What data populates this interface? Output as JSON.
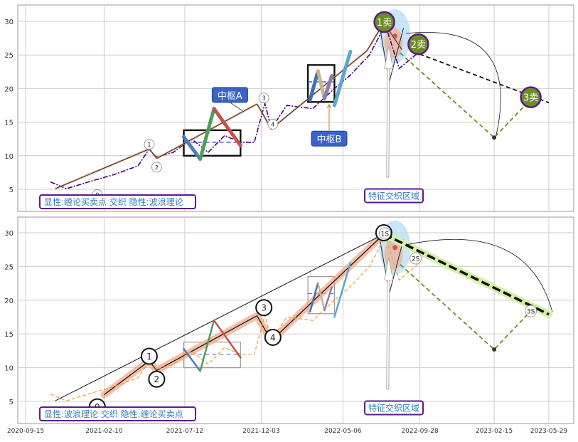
{
  "chart_data": [
    {
      "type": "line",
      "x_ticks": [
        "2020-09-15",
        "2021-02-10",
        "2021-07-12",
        "2021-12-03",
        "2022-05-06",
        "2022-09-28",
        "2023-02-15",
        "2023-05-29"
      ],
      "y_ticks": [
        5,
        10,
        15,
        20,
        25,
        30
      ],
      "ylim": [
        2.5,
        32.5
      ],
      "grid": true,
      "price_color": "#4b0082",
      "price_style": "dashdot",
      "price_anchors": [
        [
          "2020-11-01",
          6.1
        ],
        [
          "2020-12-01",
          5.1
        ],
        [
          "2021-01-20",
          6.3
        ],
        [
          "2021-03-01",
          7.2
        ],
        [
          "2021-04-15",
          8.5
        ],
        [
          "2021-05-06",
          11.0
        ],
        [
          "2021-05-20",
          9.8
        ],
        [
          "2021-06-20",
          10.5
        ],
        [
          "2021-07-25",
          12.5
        ],
        [
          "2021-08-25",
          10.5
        ],
        [
          "2021-09-25",
          13.0
        ],
        [
          "2021-10-25",
          12.0
        ],
        [
          "2021-11-20",
          12.0
        ],
        [
          "2021-12-10",
          17.8
        ],
        [
          "2021-12-22",
          14.0
        ],
        [
          "2022-01-20",
          17.5
        ],
        [
          "2022-03-10",
          17.0
        ],
        [
          "2022-04-20",
          20.0
        ],
        [
          "2022-05-20",
          22.0
        ],
        [
          "2022-06-25",
          25.0
        ],
        [
          "2022-07-25",
          29.5
        ],
        [
          "2022-08-20",
          23.0
        ],
        [
          "2022-09-20",
          25.0
        ],
        [
          "2022-10-01",
          26.0
        ]
      ],
      "bi_lines": [
        [
          [
            "2020-11-10",
            5.1
          ],
          [
            "2021-05-06",
            11.0
          ]
        ],
        [
          [
            "2021-05-06",
            11.0
          ],
          [
            "2021-05-20",
            9.6
          ]
        ],
        [
          [
            "2021-05-20",
            9.6
          ],
          [
            "2021-11-25",
            17.7
          ]
        ],
        [
          [
            "2021-11-25",
            17.7
          ],
          [
            "2021-12-22",
            14.0
          ]
        ],
        [
          [
            "2021-12-22",
            14.0
          ],
          [
            "2022-06-20",
            25.6
          ]
        ],
        [
          [
            "2022-06-20",
            25.6
          ],
          [
            "2022-07-22",
            29.8
          ]
        ],
        [
          [
            "2022-07-22",
            29.8
          ],
          [
            "2022-08-25",
            25.8
          ]
        ]
      ],
      "segment_strokes": [
        {
          "points": [
            [
              "2021-07-10",
              12.8
            ],
            [
              "2021-08-10",
              9.5
            ]
          ],
          "color": "#4a7cc1"
        },
        {
          "points": [
            [
              "2021-08-10",
              9.5
            ],
            [
              "2021-09-05",
              17.0
            ]
          ],
          "color": "#4d9f5c"
        },
        {
          "points": [
            [
              "2021-09-05",
              17.0
            ],
            [
              "2021-10-25",
              11.5
            ]
          ],
          "color": "#c94f4f"
        },
        {
          "points": [
            [
              "2022-03-05",
              18.3
            ],
            [
              "2022-03-20",
              22.6
            ]
          ],
          "color": "#3f6fb5"
        },
        {
          "points": [
            [
              "2022-03-20",
              22.6
            ],
            [
              "2022-04-01",
              18.5
            ]
          ],
          "color": "#c9b48f"
        },
        {
          "points": [
            [
              "2022-04-01",
              18.5
            ],
            [
              "2022-04-15",
              21.9
            ]
          ],
          "color": "#8a7ab4"
        },
        {
          "points": [
            [
              "2022-04-20",
              17.5
            ],
            [
              "2022-05-20",
              25.5
            ]
          ],
          "color": "#5aa9cf"
        }
      ],
      "zhongshu_boxes": [
        {
          "x": [
            "2021-07-10",
            "2021-10-25"
          ],
          "y": [
            10.0,
            13.8
          ],
          "mid": 12.0
        },
        {
          "x": [
            "2022-03-01",
            "2022-04-20"
          ],
          "y": [
            18.0,
            23.5
          ],
          "mid": 21.0
        }
      ],
      "numbered_points": [
        {
          "label": "0",
          "x": "2021-01-28",
          "y": 4.2
        },
        {
          "label": "1",
          "x": "2021-05-06",
          "y": 11.7
        },
        {
          "label": "2",
          "x": "2021-05-20",
          "y": 8.3
        },
        {
          "label": "3",
          "x": "2021-12-08",
          "y": 18.6
        },
        {
          "label": "4",
          "x": "2021-12-25",
          "y": 14.7
        }
      ],
      "labels": [
        {
          "key": "zhongshu_a",
          "text": "中枢A",
          "x": "2021-10-05",
          "y": 19.0
        },
        {
          "key": "zhongshu_b",
          "text": "中枢B",
          "x": "2022-04-10",
          "y": 12.5
        },
        {
          "key": "feature_zone",
          "text": "特征交织区域",
          "x": "2022-08-10",
          "y": 4.0
        },
        {
          "key": "legend",
          "text": "显性:缠论买卖点 交织 隐性:波浪理论"
        }
      ],
      "sell_points": [
        {
          "label": "1卖",
          "x": "2022-07-23",
          "y": 29.9
        },
        {
          "label": "2卖",
          "x": "2022-09-25",
          "y": 26.6
        },
        {
          "label": "3卖",
          "x": "2023-04-25",
          "y": 18.7
        }
      ],
      "projection": {
        "from": [
          "2022-09-15",
          25.5
        ],
        "to": [
          "2023-05-29",
          17.9
        ],
        "valley": [
          "2023-02-15",
          12.7
        ]
      }
    },
    {
      "type": "line",
      "x_ticks": [
        "2020-09-15",
        "2021-02-10",
        "2021-07-12",
        "2021-12-03",
        "2022-05-06",
        "2022-09-28",
        "2023-02-15",
        "2023-05-29"
      ],
      "y_ticks": [
        5,
        10,
        15,
        20,
        25,
        30
      ],
      "ylim": [
        2.5,
        32.5
      ],
      "grid": true,
      "price_color": "#e8a838",
      "price_style": "dashed",
      "price_anchors": [
        [
          "2020-11-01",
          6.1
        ],
        [
          "2020-12-01",
          5.1
        ],
        [
          "2021-01-20",
          6.3
        ],
        [
          "2021-03-01",
          7.2
        ],
        [
          "2021-04-15",
          8.5
        ],
        [
          "2021-05-06",
          11.0
        ],
        [
          "2021-05-20",
          9.8
        ],
        [
          "2021-06-20",
          10.5
        ],
        [
          "2021-07-25",
          12.5
        ],
        [
          "2021-08-25",
          10.5
        ],
        [
          "2021-09-25",
          13.0
        ],
        [
          "2021-10-25",
          12.0
        ],
        [
          "2021-11-20",
          12.0
        ],
        [
          "2021-12-10",
          17.8
        ],
        [
          "2021-12-22",
          14.0
        ],
        [
          "2022-01-20",
          17.5
        ],
        [
          "2022-03-10",
          17.0
        ],
        [
          "2022-04-20",
          20.0
        ],
        [
          "2022-05-20",
          22.0
        ],
        [
          "2022-06-25",
          25.0
        ],
        [
          "2022-07-25",
          29.5
        ],
        [
          "2022-08-20",
          23.0
        ],
        [
          "2022-09-20",
          25.0
        ],
        [
          "2022-10-01",
          26.0
        ]
      ],
      "wave_lines": [
        [
          [
            "2021-02-10",
            6.0
          ],
          [
            "2021-05-06",
            11.0
          ],
          [
            "2021-05-20",
            9.6
          ],
          [
            "2021-11-25",
            17.7
          ],
          [
            "2021-12-22",
            14.0
          ],
          [
            "2022-07-22",
            29.8
          ]
        ]
      ],
      "trend_line": [
        [
          "2020-11-10",
          5.1
        ],
        [
          "2022-07-22",
          29.8
        ]
      ],
      "segment_strokes": [
        {
          "points": [
            [
              "2021-07-10",
              12.8
            ],
            [
              "2021-08-10",
              9.5
            ]
          ],
          "color": "#4a7cc1"
        },
        {
          "points": [
            [
              "2021-08-10",
              9.5
            ],
            [
              "2021-09-05",
              17.0
            ]
          ],
          "color": "#4d9f5c"
        },
        {
          "points": [
            [
              "2021-09-05",
              17.0
            ],
            [
              "2021-10-25",
              11.5
            ]
          ],
          "color": "#c94f4f"
        },
        {
          "points": [
            [
              "2022-03-05",
              18.3
            ],
            [
              "2022-03-20",
              22.6
            ]
          ],
          "color": "#3f6fb5"
        },
        {
          "points": [
            [
              "2022-03-20",
              22.6
            ],
            [
              "2022-04-01",
              18.5
            ]
          ],
          "color": "#c9b48f"
        },
        {
          "points": [
            [
              "2022-04-01",
              18.5
            ],
            [
              "2022-04-15",
              21.9
            ]
          ],
          "color": "#8a7ab4"
        },
        {
          "points": [
            [
              "2022-04-20",
              17.5
            ],
            [
              "2022-05-20",
              25.5
            ]
          ],
          "color": "#5aa9cf"
        }
      ],
      "zhongshu_boxes": [
        {
          "x": [
            "2021-07-10",
            "2021-10-25"
          ],
          "y": [
            10.0,
            13.8
          ],
          "mid": 12.0
        },
        {
          "x": [
            "2022-03-01",
            "2022-04-20"
          ],
          "y": [
            18.0,
            23.5
          ],
          "mid": 21.0
        }
      ],
      "numbered_points": [
        {
          "label": "0",
          "x": "2021-01-28",
          "y": 4.2
        },
        {
          "label": "1",
          "x": "2021-05-06",
          "y": 11.7
        },
        {
          "label": "2",
          "x": "2021-05-20",
          "y": 8.3
        },
        {
          "label": "3",
          "x": "2021-12-08",
          "y": 18.9
        },
        {
          "label": "4",
          "x": "2021-12-25",
          "y": 14.5
        },
        {
          "label": "5",
          "x": "2022-07-22",
          "y": 30.0
        }
      ],
      "small_labels": [
        {
          "label": "1S",
          "x": "2022-07-24",
          "y": 29.9
        },
        {
          "label": "2S",
          "x": "2022-09-20",
          "y": 26.2
        },
        {
          "label": "3S",
          "x": "2023-04-25",
          "y": 18.4
        }
      ],
      "labels": [
        {
          "key": "feature_zone",
          "text": "特征交织区域",
          "x": "2022-08-10",
          "y": 4.0
        },
        {
          "key": "legend",
          "text": "显性:波浪理论 交织 隐性:缠论买卖点"
        }
      ],
      "projection": {
        "from": [
          "2022-09-15",
          25.5
        ],
        "to": [
          "2023-05-29",
          17.9
        ],
        "valley": [
          "2023-02-15",
          12.7
        ]
      }
    }
  ],
  "colors": {
    "grid": "#cccccc",
    "panel_border": "#999999",
    "purple_border": "#5b1a8a",
    "label_blue": "#3a63c7",
    "sell_green": "#6b8e23",
    "projection_green": "#6b8e23",
    "highlight_green": "#d4f0a8",
    "wave_orange": "#f4a382",
    "zone_blue": "#b8dcf2",
    "zone_red": "#e24c4c",
    "legend_text": "#2b7fc0"
  }
}
